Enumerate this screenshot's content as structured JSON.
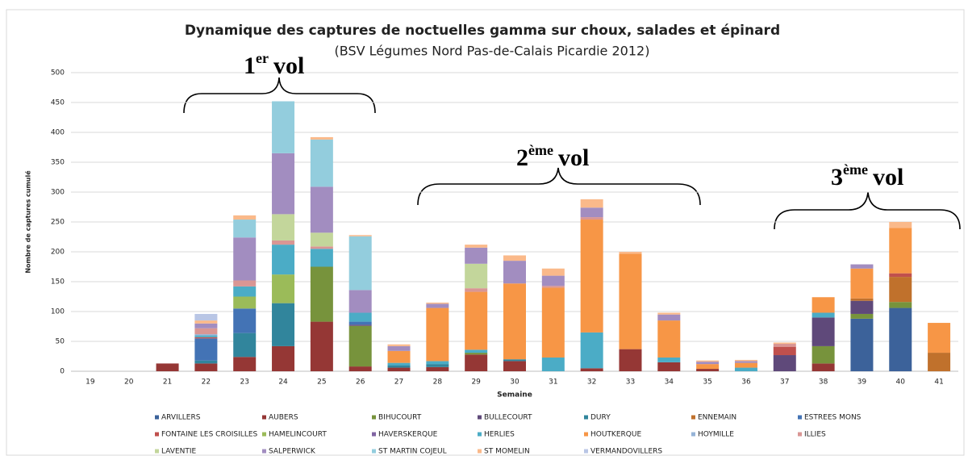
{
  "chart_data": {
    "type": "stacked_bar",
    "title": "Dynamique des captures de noctuelles gamma sur choux, salades et épinard",
    "subtitle": "(BSV Légumes Nord Pas-de-Calais Picardie 2012)",
    "x_label": "Semaine",
    "y_label": "Nombre de captures cumulé",
    "annotations": [
      {
        "text": "1",
        "sup": "er",
        "after": "vol"
      },
      {
        "text": "2",
        "sup": "ème",
        "after": "vol"
      },
      {
        "text": "3",
        "sup": "ème",
        "after": "vol"
      }
    ],
    "categories": [
      "19",
      "20",
      "21",
      "22",
      "23",
      "24",
      "25",
      "26",
      "27",
      "28",
      "29",
      "30",
      "31",
      "32",
      "33",
      "34",
      "35",
      "36",
      "37",
      "38",
      "39",
      "40",
      "41"
    ],
    "ylim": [
      0,
      500
    ],
    "yticks": [
      0,
      50,
      100,
      150,
      200,
      250,
      300,
      350,
      400,
      450,
      500
    ],
    "grid": true,
    "legend": "bottom",
    "series": [
      {
        "name": "ARVILLERS",
        "color": "#3c629a",
        "values": [
          0,
          0,
          0,
          0,
          0,
          0,
          0,
          0,
          0,
          0,
          0,
          0,
          0,
          0,
          0,
          0,
          0,
          0,
          0,
          0,
          88,
          106,
          0
        ]
      },
      {
        "name": "AUBERS",
        "color": "#953735",
        "values": [
          0,
          0,
          13,
          13,
          24,
          42,
          83,
          8,
          6,
          7,
          28,
          17,
          0,
          5,
          37,
          15,
          4,
          0,
          0,
          13,
          0,
          0,
          0
        ]
      },
      {
        "name": "BIHUCOURT",
        "color": "#77933c",
        "values": [
          0,
          0,
          0,
          0,
          0,
          0,
          92,
          68,
          0,
          0,
          3,
          0,
          0,
          0,
          0,
          0,
          0,
          0,
          0,
          29,
          8,
          10,
          0
        ]
      },
      {
        "name": "BULLECOURT",
        "color": "#5f497a",
        "values": [
          0,
          0,
          0,
          0,
          0,
          0,
          0,
          2,
          0,
          0,
          0,
          0,
          0,
          0,
          0,
          0,
          0,
          0,
          27,
          48,
          22,
          0,
          0
        ]
      },
      {
        "name": "DURY",
        "color": "#31859c",
        "values": [
          0,
          0,
          0,
          5,
          40,
          72,
          0,
          0,
          4,
          5,
          0,
          3,
          0,
          0,
          0,
          0,
          0,
          0,
          0,
          0,
          0,
          0,
          0
        ]
      },
      {
        "name": "ENNEMAIN",
        "color": "#c0712c",
        "values": [
          0,
          0,
          0,
          0,
          0,
          0,
          0,
          0,
          0,
          0,
          0,
          0,
          0,
          0,
          0,
          0,
          0,
          0,
          0,
          0,
          4,
          42,
          31
        ]
      },
      {
        "name": "ESTREES MONS",
        "color": "#4373b5",
        "values": [
          0,
          0,
          0,
          37,
          41,
          0,
          0,
          5,
          0,
          0,
          0,
          0,
          0,
          0,
          0,
          0,
          0,
          0,
          0,
          0,
          0,
          0,
          0
        ]
      },
      {
        "name": "FONTAINE LES CROISILLES",
        "color": "#c0504d",
        "values": [
          0,
          0,
          0,
          2,
          0,
          0,
          0,
          0,
          0,
          0,
          0,
          0,
          0,
          0,
          0,
          0,
          0,
          0,
          14,
          0,
          0,
          6,
          0
        ]
      },
      {
        "name": "HAMELINCOURT",
        "color": "#9bbb59",
        "values": [
          0,
          0,
          0,
          0,
          20,
          48,
          0,
          0,
          0,
          0,
          0,
          0,
          0,
          0,
          0,
          0,
          0,
          0,
          0,
          0,
          0,
          0,
          0
        ]
      },
      {
        "name": "HAVERSKERQUE",
        "color": "#8064a2",
        "values": [
          0,
          0,
          0,
          0,
          0,
          0,
          0,
          0,
          0,
          0,
          0,
          0,
          0,
          0,
          0,
          0,
          0,
          0,
          0,
          0,
          0,
          0,
          0
        ]
      },
      {
        "name": "HERLIES",
        "color": "#4bacc6",
        "values": [
          0,
          0,
          0,
          3,
          17,
          50,
          30,
          15,
          4,
          5,
          5,
          0,
          23,
          60,
          0,
          8,
          0,
          6,
          0,
          8,
          0,
          0,
          0
        ]
      },
      {
        "name": "HOUTKERQUE",
        "color": "#f79646",
        "values": [
          0,
          0,
          0,
          0,
          0,
          0,
          0,
          0,
          20,
          89,
          97,
          127,
          117,
          189,
          160,
          62,
          8,
          8,
          0,
          26,
          50,
          76,
          50
        ]
      },
      {
        "name": "HOYMILLE",
        "color": "#95b3d7",
        "values": [
          0,
          0,
          0,
          2,
          0,
          0,
          0,
          0,
          0,
          0,
          0,
          0,
          0,
          0,
          0,
          0,
          0,
          0,
          0,
          0,
          0,
          0,
          0
        ]
      },
      {
        "name": "ILLIES",
        "color": "#d99694",
        "values": [
          0,
          0,
          0,
          10,
          10,
          7,
          4,
          0,
          0,
          0,
          6,
          0,
          3,
          4,
          0,
          0,
          0,
          0,
          5,
          0,
          0,
          0,
          0
        ]
      },
      {
        "name": "LAVENTIE",
        "color": "#c3d69b",
        "values": [
          0,
          0,
          0,
          0,
          0,
          44,
          23,
          0,
          0,
          0,
          41,
          0,
          0,
          0,
          0,
          0,
          0,
          0,
          0,
          0,
          0,
          0,
          0
        ]
      },
      {
        "name": "SALPERWICK",
        "color": "#a28dc0",
        "values": [
          0,
          0,
          0,
          8,
          72,
          102,
          77,
          38,
          8,
          7,
          27,
          38,
          17,
          16,
          0,
          10,
          4,
          3,
          0,
          0,
          7,
          0,
          0
        ]
      },
      {
        "name": "ST MARTIN COJEUL",
        "color": "#93cddd",
        "values": [
          0,
          0,
          0,
          0,
          30,
          87,
          79,
          90,
          0,
          0,
          0,
          0,
          0,
          0,
          0,
          0,
          0,
          0,
          0,
          0,
          0,
          0,
          0
        ]
      },
      {
        "name": "ST MOMELIN",
        "color": "#fab98a",
        "values": [
          0,
          0,
          0,
          5,
          7,
          0,
          4,
          2,
          3,
          2,
          5,
          9,
          12,
          14,
          3,
          3,
          2,
          2,
          2,
          0,
          0,
          10,
          0
        ]
      },
      {
        "name": "VERMANDOVILLERS",
        "color": "#b9c6e5",
        "values": [
          0,
          0,
          0,
          11,
          0,
          0,
          0,
          0,
          0,
          0,
          0,
          0,
          0,
          0,
          0,
          0,
          0,
          0,
          0,
          0,
          0,
          0,
          0
        ]
      }
    ]
  }
}
